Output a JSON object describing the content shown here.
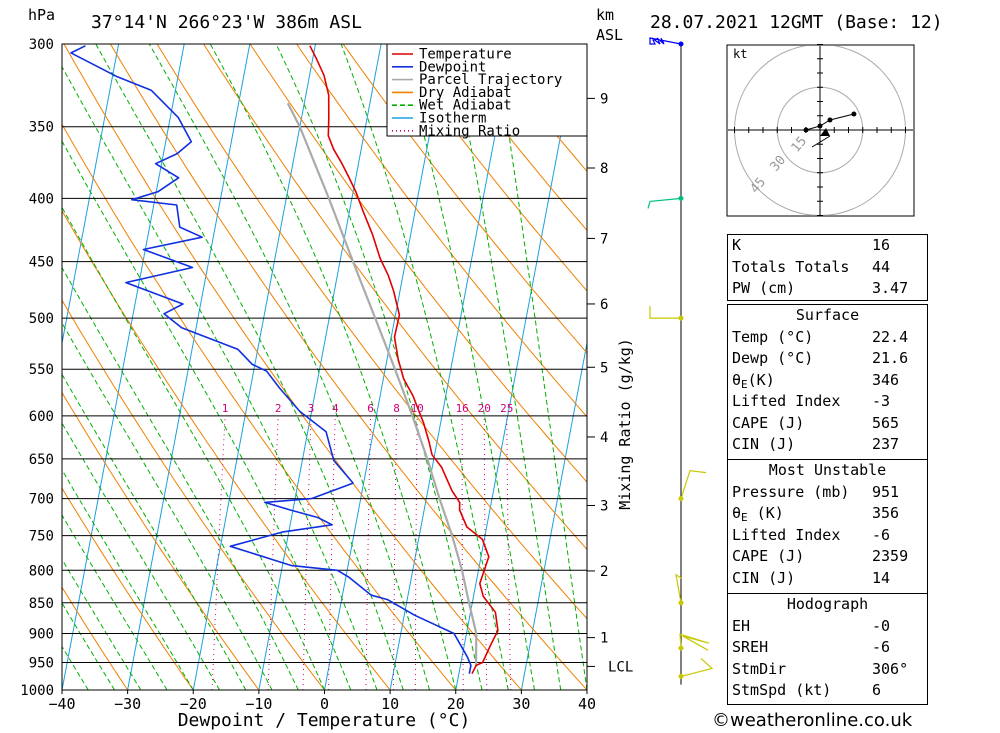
{
  "header": {
    "units_left": "hPa",
    "location": "37°14'N  266°23'W  386m  ASL",
    "km_label": "km",
    "asl_label": "ASL",
    "date": "28.07.2021  12GMT  (Base: 12)"
  },
  "legend": [
    {
      "label": "Temperature",
      "color": "#e00000",
      "style": "solid"
    },
    {
      "label": "Dewpoint",
      "color": "#1030e0",
      "style": "solid"
    },
    {
      "label": "Parcel Trajectory",
      "color": "#aaaaaa",
      "style": "solid"
    },
    {
      "label": "Dry Adiabat",
      "color": "#f08000",
      "style": "solid"
    },
    {
      "label": "Wet Adiabat",
      "color": "#00b000",
      "style": "dashed"
    },
    {
      "label": "Isotherm",
      "color": "#1ba0e0",
      "style": "solid"
    },
    {
      "label": "Mixing Ratio",
      "color": "#d0007a",
      "style": "dotted"
    }
  ],
  "colors": {
    "temperature": "#e00000",
    "dewpoint": "#1030e0",
    "parcel": "#aaaaaa",
    "dry_adiabat": "#f08000",
    "wet_adiabat": "#00b000",
    "isotherm": "#1ba0e0",
    "mixing_ratio": "#d0007a",
    "wind_barb": "#c8c800"
  },
  "chart_data": {
    "type": "line",
    "chart_kind": "skew-T log-P",
    "xlabel": "Dewpoint / Temperature (°C)",
    "ylabel_left": "hPa",
    "ylabel_right": "Mixing Ratio (g/kg)",
    "x_ticks": [
      -40,
      -30,
      -20,
      -10,
      0,
      10,
      20,
      30,
      40
    ],
    "xlim": [
      -40,
      40
    ],
    "p_ticks": [
      300,
      350,
      400,
      450,
      500,
      550,
      600,
      650,
      700,
      750,
      800,
      850,
      900,
      950,
      1000
    ],
    "plim": [
      1000,
      300
    ],
    "y_scale": "log",
    "grid": true,
    "km_ticks": [
      {
        "label": "1",
        "p": 907
      },
      {
        "label": "2",
        "p": 801
      },
      {
        "label": "3",
        "p": 709
      },
      {
        "label": "4",
        "p": 624
      },
      {
        "label": "5",
        "p": 548
      },
      {
        "label": "6",
        "p": 487
      },
      {
        "label": "7",
        "p": 431
      },
      {
        "label": "8",
        "p": 378
      },
      {
        "label": "9",
        "p": 332
      },
      {
        "label": "LCL",
        "p": 957
      }
    ],
    "mixing_ratio_labels": [
      "1",
      "2",
      "3",
      "4",
      "6",
      "8",
      "10",
      "16",
      "20",
      "25"
    ],
    "series": [
      {
        "name": "Temperature",
        "points": [
          [
            22.0,
            970
          ],
          [
            22.4,
            955
          ],
          [
            23.3,
            950
          ],
          [
            24.0,
            920
          ],
          [
            24.7,
            895
          ],
          [
            23.8,
            865
          ],
          [
            21.5,
            840
          ],
          [
            20.6,
            820
          ],
          [
            21.2,
            780
          ],
          [
            19.7,
            755
          ],
          [
            17.0,
            738
          ],
          [
            15.4,
            715
          ],
          [
            15.2,
            705
          ],
          [
            13.7,
            690
          ],
          [
            11.4,
            660
          ],
          [
            9.6,
            645
          ],
          [
            8.8,
            630
          ],
          [
            7.4,
            608
          ],
          [
            5.0,
            578
          ],
          [
            3.1,
            560
          ],
          [
            1.7,
            540
          ],
          [
            0.5,
            518
          ],
          [
            0.6,
            497
          ],
          [
            -1.0,
            475
          ],
          [
            -2.2,
            462
          ],
          [
            -4.0,
            447
          ],
          [
            -5.8,
            428
          ],
          [
            -7.9,
            410
          ],
          [
            -9.6,
            395
          ],
          [
            -11.3,
            383
          ],
          [
            -12.5,
            375
          ],
          [
            -14.2,
            365
          ],
          [
            -15.4,
            356
          ],
          [
            -15.8,
            345
          ],
          [
            -16.5,
            330
          ],
          [
            -17.8,
            318
          ],
          [
            -19.5,
            308
          ],
          [
            -20.8,
            301
          ]
        ]
      },
      {
        "name": "Dewpoint",
        "points": [
          [
            21.6,
            970
          ],
          [
            21.6,
            955
          ],
          [
            20.8,
            940
          ],
          [
            18.1,
            900
          ],
          [
            11.6,
            870
          ],
          [
            7.0,
            845
          ],
          [
            4.4,
            838
          ],
          [
            0.4,
            810
          ],
          [
            -1.5,
            800
          ],
          [
            -8.6,
            793
          ],
          [
            -18.5,
            765
          ],
          [
            -11.0,
            745
          ],
          [
            -3.6,
            735
          ],
          [
            -6.0,
            725
          ],
          [
            -10.4,
            715
          ],
          [
            -14.5,
            705
          ],
          [
            -7.5,
            700
          ],
          [
            -1.6,
            680
          ],
          [
            -5.2,
            652
          ],
          [
            -7.2,
            618
          ],
          [
            -11.8,
            595
          ],
          [
            -15.5,
            570
          ],
          [
            -18.0,
            552
          ],
          [
            -20.4,
            545
          ],
          [
            -23.0,
            530
          ],
          [
            -32.2,
            509
          ],
          [
            -35.3,
            496
          ],
          [
            -32.7,
            487
          ],
          [
            -42.0,
            468
          ],
          [
            -32.3,
            455
          ],
          [
            -40.3,
            440
          ],
          [
            -31.7,
            430
          ],
          [
            -35.4,
            422
          ],
          [
            -36.5,
            405
          ],
          [
            -43.5,
            401
          ],
          [
            -39.7,
            395
          ],
          [
            -37.0,
            385
          ],
          [
            -40.9,
            375
          ],
          [
            -37.9,
            368
          ],
          [
            -36.1,
            360
          ],
          [
            -38.8,
            344
          ],
          [
            -43.7,
            327
          ],
          [
            -49.2,
            319
          ],
          [
            -57.0,
            305
          ],
          [
            -55.0,
            301
          ]
        ]
      },
      {
        "name": "Parcel Trajectory",
        "points": [
          [
            22.4,
            957
          ],
          [
            21.5,
            900
          ],
          [
            19.5,
            850
          ],
          [
            17.5,
            800
          ],
          [
            15.0,
            750
          ],
          [
            12.0,
            700
          ],
          [
            9.0,
            650
          ],
          [
            5.5,
            600
          ],
          [
            1.5,
            550
          ],
          [
            -3.0,
            500
          ],
          [
            -8.0,
            450
          ],
          [
            -13.5,
            400
          ],
          [
            -20.0,
            350
          ],
          [
            -22.5,
            335
          ]
        ]
      }
    ],
    "hodograph": {
      "unit_label": "kt",
      "ring_labels": [
        "15",
        "30",
        "45"
      ],
      "points": [
        [
          -7,
          0
        ],
        [
          0,
          2
        ],
        [
          5,
          5
        ],
        [
          17,
          8
        ]
      ]
    },
    "wind_barbs_p": [
      300,
      400,
      500,
      700,
      850,
      925,
      975
    ]
  },
  "indices": {
    "rows": [
      {
        "k": "K",
        "v": "16"
      },
      {
        "k": "Totals Totals",
        "v": "44"
      },
      {
        "k": "PW (cm)",
        "v": "3.47"
      }
    ]
  },
  "surface": {
    "title": "Surface",
    "rows": [
      {
        "k": "Temp (°C)",
        "v": "22.4"
      },
      {
        "k": "Dewp (°C)",
        "v": "21.6"
      },
      {
        "k": "θ",
        "sub": "E",
        "suffix": "(K)",
        "v": "346"
      },
      {
        "k": "Lifted Index",
        "v": "-3"
      },
      {
        "k": "CAPE (J)",
        "v": "565"
      },
      {
        "k": "CIN (J)",
        "v": "237"
      }
    ]
  },
  "most_unstable": {
    "title": "Most Unstable",
    "rows": [
      {
        "k": "Pressure (mb)",
        "v": "951"
      },
      {
        "k": "θ",
        "sub": "E",
        "suffix": " (K)",
        "v": "356"
      },
      {
        "k": "Lifted Index",
        "v": "-6"
      },
      {
        "k": "CAPE (J)",
        "v": "2359"
      },
      {
        "k": "CIN (J)",
        "v": "14"
      }
    ]
  },
  "hodograph_box": {
    "title": "Hodograph",
    "rows": [
      {
        "k": "EH",
        "v": "-0"
      },
      {
        "k": "SREH",
        "v": "-6"
      },
      {
        "k": "StmDir",
        "v": "306°"
      },
      {
        "k": "StmSpd (kt)",
        "v": "6"
      }
    ]
  },
  "credit": "©weatheronline.co.uk"
}
